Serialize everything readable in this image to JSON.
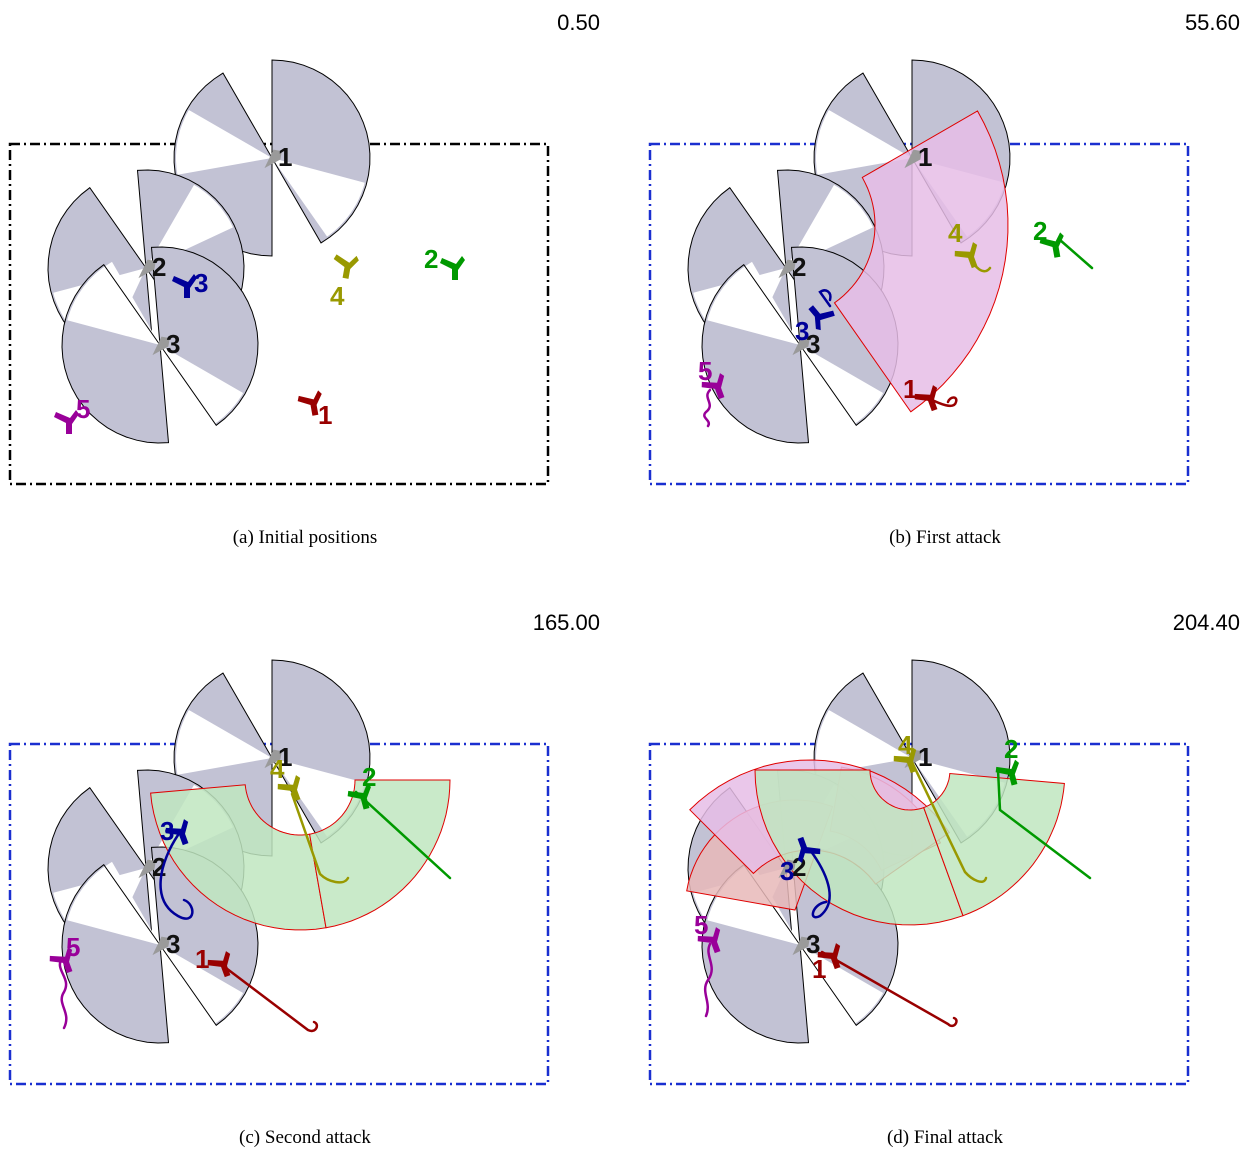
{
  "figure": {
    "colors": {
      "defender_body": "#9a9a9a",
      "defender_label": "#111111",
      "sector_fill": "#c2c2d4",
      "sector_stroke": "#000000",
      "attack_magenta": "#e6bde6",
      "attack_green": "#bfe6bf",
      "attack_red": "#e8b8b8",
      "attack_stroke": "#e00000"
    },
    "agents": {
      "1": {
        "label": "1",
        "color": "#990000"
      },
      "2": {
        "label": "2",
        "color": "#009900"
      },
      "3": {
        "label": "3",
        "color": "#000099"
      },
      "4": {
        "label": "4",
        "color": "#999900"
      },
      "5": {
        "label": "5",
        "color": "#990099"
      }
    },
    "defender_labels": [
      "1",
      "2",
      "3"
    ],
    "panels": [
      {
        "id": "a",
        "time": "0.50",
        "caption": "(a) Initial positions",
        "border_color": "#000000"
      },
      {
        "id": "b",
        "time": "55.60",
        "caption": "(b) First attack",
        "border_color": "#1a2fd0"
      },
      {
        "id": "c",
        "time": "165.00",
        "caption": "(c) Second attack",
        "border_color": "#1a2fd0"
      },
      {
        "id": "d",
        "time": "204.40",
        "caption": "(d) Final attack",
        "border_color": "#1a2fd0"
      }
    ]
  }
}
